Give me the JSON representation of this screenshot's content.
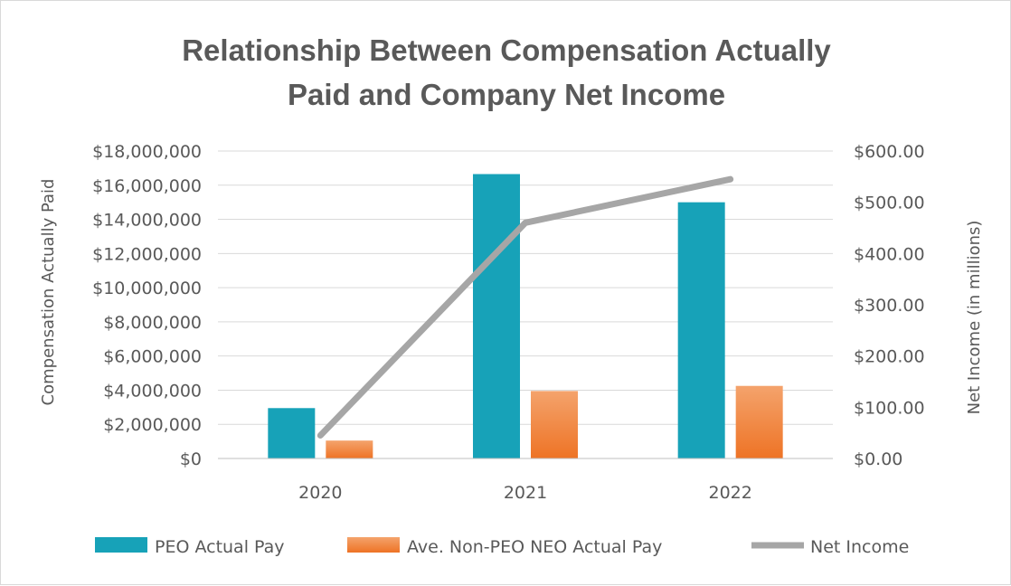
{
  "chart_data": {
    "type": "bar",
    "title_lines": [
      "Relationship Between Compensation Actually",
      "Paid and Company Net Income"
    ],
    "categories": [
      "2020",
      "2021",
      "2022"
    ],
    "ylabel": "Compensation Actually Paid",
    "ylabel_right": "Net Income (in millions)",
    "ylim": [
      0,
      18000000
    ],
    "ylim_right": [
      0,
      600
    ],
    "y_ticks": [
      "$0",
      "$2,000,000",
      "$4,000,000",
      "$6,000,000",
      "$8,000,000",
      "$10,000,000",
      "$12,000,000",
      "$14,000,000",
      "$16,000,000",
      "$18,000,000"
    ],
    "y_ticks_right": [
      "$0.00",
      "$100.00",
      "$200.00",
      "$300.00",
      "$400.00",
      "$500.00",
      "$600.00"
    ],
    "grid": true,
    "legend_position": "bottom",
    "series": [
      {
        "name": "PEO Actual Pay",
        "kind": "bar",
        "axis": "left",
        "color": "#17A2B8",
        "values": [
          2950000,
          16650000,
          15000000
        ]
      },
      {
        "name": "Ave. Non-PEO NEO Actual Pay",
        "kind": "bar",
        "axis": "left",
        "color": "#F0782D",
        "values": [
          1050000,
          3950000,
          4250000
        ]
      },
      {
        "name": "Net Income",
        "kind": "line",
        "axis": "right",
        "color": "#A6A6A6",
        "values": [
          45,
          460,
          545
        ]
      }
    ]
  }
}
